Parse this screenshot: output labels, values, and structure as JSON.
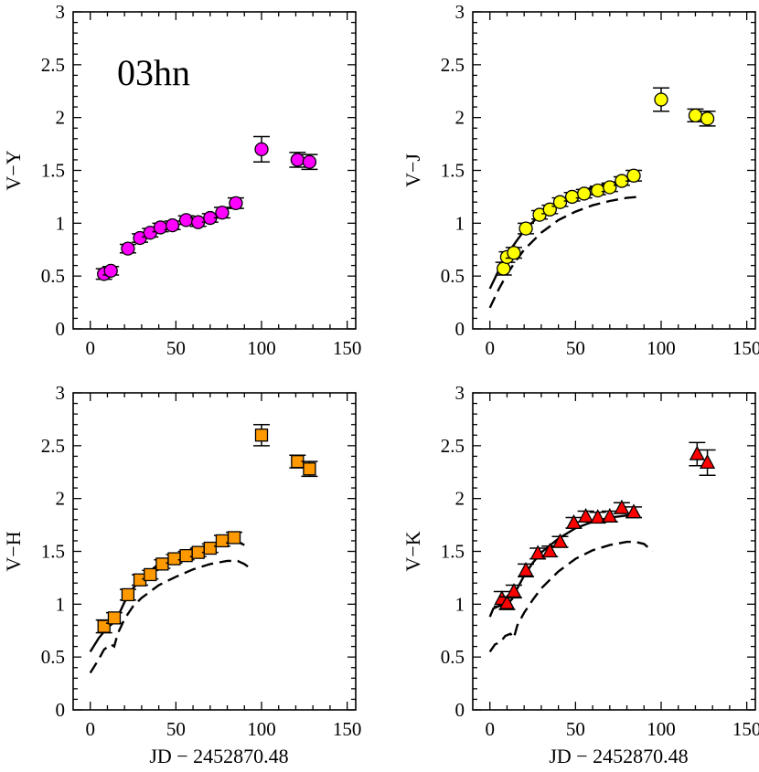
{
  "chart_data": [
    {
      "type": "scatter",
      "ylabel": "V−Y",
      "xlabel": "",
      "annotation": "03hn",
      "xlim": [
        -10,
        155
      ],
      "ylim": [
        0,
        3
      ],
      "xticks": [
        0,
        50,
        100,
        150
      ],
      "yticks": [
        0,
        0.5,
        1,
        1.5,
        2,
        2.5,
        3
      ],
      "ytick_labels": [
        "0",
        "0.5",
        "1",
        "1.5",
        "2",
        "2.5",
        "3"
      ],
      "marker": "circle",
      "marker_color": "#ff00ff",
      "series": [
        {
          "name": "data",
          "x": [
            8,
            12,
            22,
            29,
            35,
            41,
            48,
            56,
            63,
            70,
            77,
            85,
            100,
            121,
            128
          ],
          "y": [
            0.52,
            0.55,
            0.76,
            0.86,
            0.91,
            0.96,
            0.98,
            1.03,
            1.01,
            1.05,
            1.1,
            1.19,
            1.7,
            1.6,
            1.58
          ],
          "err": [
            0.05,
            0.04,
            0.04,
            0.04,
            0.04,
            0.04,
            0.04,
            0.04,
            0.04,
            0.04,
            0.05,
            0.05,
            0.12,
            0.07,
            0.07
          ]
        }
      ],
      "curves": []
    },
    {
      "type": "scatter",
      "ylabel": "V−J",
      "xlabel": "",
      "xlim": [
        -10,
        155
      ],
      "ylim": [
        0,
        3
      ],
      "xticks": [
        0,
        50,
        100,
        150
      ],
      "yticks": [
        0,
        0.5,
        1,
        1.5,
        2,
        2.5,
        3
      ],
      "ytick_labels": [
        "0",
        "0.5",
        "1",
        "1.5",
        "2",
        "2.5",
        "3"
      ],
      "marker": "circle",
      "marker_color": "#ffff00",
      "series": [
        {
          "name": "data",
          "x": [
            8,
            10,
            14,
            21,
            29,
            35,
            41,
            48,
            55,
            63,
            70,
            77,
            84,
            100,
            120,
            127
          ],
          "y": [
            0.57,
            0.68,
            0.72,
            0.95,
            1.08,
            1.13,
            1.2,
            1.25,
            1.28,
            1.31,
            1.34,
            1.4,
            1.45,
            2.17,
            2.02,
            1.99
          ],
          "err": [
            0.06,
            0.05,
            0.05,
            0.05,
            0.04,
            0.04,
            0.04,
            0.04,
            0.04,
            0.04,
            0.04,
            0.04,
            0.05,
            0.11,
            0.06,
            0.07
          ]
        }
      ],
      "curves": [
        {
          "name": "solid-fit",
          "dash": "",
          "x": [
            0,
            5,
            10,
            15,
            20,
            30,
            40,
            50,
            60,
            70,
            80,
            87
          ],
          "y": [
            0.38,
            0.55,
            0.7,
            0.82,
            0.93,
            1.09,
            1.2,
            1.28,
            1.34,
            1.38,
            1.41,
            1.42
          ]
        },
        {
          "name": "dashed-model",
          "dash": "13,7",
          "x": [
            0,
            5,
            10,
            15,
            20,
            30,
            40,
            50,
            60,
            70,
            80,
            87
          ],
          "y": [
            0.2,
            0.37,
            0.52,
            0.64,
            0.75,
            0.91,
            1.03,
            1.11,
            1.17,
            1.21,
            1.24,
            1.25
          ]
        }
      ]
    },
    {
      "type": "scatter",
      "ylabel": "V−H",
      "xlabel": "JD − 2452870.48",
      "xlim": [
        -10,
        155
      ],
      "ylim": [
        0,
        3
      ],
      "xticks": [
        0,
        50,
        100,
        150
      ],
      "yticks": [
        0,
        0.5,
        1,
        1.5,
        2,
        2.5,
        3
      ],
      "ytick_labels": [
        "0",
        "0.5",
        "1",
        "1.5",
        "2",
        "2.5",
        "3"
      ],
      "marker": "square",
      "marker_color": "#ff9900",
      "series": [
        {
          "name": "data",
          "x": [
            8,
            14,
            22,
            29,
            35,
            42,
            49,
            56,
            63,
            70,
            77,
            84,
            100,
            121,
            128
          ],
          "y": [
            0.79,
            0.87,
            1.09,
            1.23,
            1.28,
            1.38,
            1.43,
            1.46,
            1.49,
            1.53,
            1.6,
            1.63,
            2.6,
            2.35,
            2.28
          ],
          "err": [
            0.06,
            0.05,
            0.05,
            0.05,
            0.04,
            0.04,
            0.04,
            0.04,
            0.04,
            0.04,
            0.05,
            0.05,
            0.1,
            0.06,
            0.07
          ]
        }
      ],
      "curves": [
        {
          "name": "solid-fit",
          "dash": "",
          "x": [
            0,
            5,
            10,
            14,
            16,
            20,
            25,
            30,
            40,
            50,
            60,
            70,
            80,
            86,
            90
          ],
          "y": [
            0.55,
            0.68,
            0.78,
            0.83,
            0.88,
            1.02,
            1.15,
            1.25,
            1.38,
            1.46,
            1.52,
            1.56,
            1.59,
            1.59,
            1.56
          ]
        },
        {
          "name": "dashed-model",
          "dash": "13,7",
          "x": [
            0,
            5,
            8,
            12,
            14,
            16,
            20,
            25,
            30,
            40,
            50,
            60,
            70,
            80,
            86,
            90,
            95
          ],
          "y": [
            0.35,
            0.48,
            0.57,
            0.62,
            0.6,
            0.72,
            0.86,
            0.98,
            1.06,
            1.18,
            1.26,
            1.33,
            1.38,
            1.41,
            1.41,
            1.38,
            1.32
          ]
        }
      ]
    },
    {
      "type": "scatter",
      "ylabel": "V−K",
      "xlabel": "JD − 2452870.48",
      "xlim": [
        -10,
        155
      ],
      "ylim": [
        0,
        3
      ],
      "xticks": [
        0,
        50,
        100,
        150
      ],
      "yticks": [
        0,
        0.5,
        1,
        1.5,
        2,
        2.5,
        3
      ],
      "ytick_labels": [
        "0",
        "0.5",
        "1",
        "1.5",
        "2",
        "2.5",
        "3"
      ],
      "marker": "triangle",
      "marker_color": "#ff0000",
      "series": [
        {
          "name": "data",
          "x": [
            7,
            10,
            14,
            21,
            28,
            35,
            41,
            49,
            56,
            63,
            70,
            77,
            84,
            121,
            127
          ],
          "y": [
            1.05,
            1.01,
            1.12,
            1.32,
            1.48,
            1.5,
            1.59,
            1.77,
            1.83,
            1.82,
            1.83,
            1.91,
            1.87,
            2.42,
            2.34
          ],
          "err": [
            0.07,
            0.06,
            0.06,
            0.06,
            0.05,
            0.05,
            0.05,
            0.05,
            0.05,
            0.05,
            0.05,
            0.05,
            0.05,
            0.11,
            0.12
          ]
        }
      ],
      "curves": [
        {
          "name": "solid-fit",
          "dash": "",
          "x": [
            0,
            2,
            5,
            8,
            10,
            13,
            15,
            20,
            25,
            30,
            40,
            50,
            60,
            70,
            80,
            87
          ],
          "y": [
            0.88,
            0.96,
            0.98,
            1.02,
            1.0,
            1.05,
            1.12,
            1.27,
            1.39,
            1.49,
            1.62,
            1.72,
            1.78,
            1.82,
            1.84,
            1.84
          ]
        },
        {
          "name": "dashed-model",
          "dash": "13,7",
          "x": [
            0,
            3,
            6,
            9,
            12,
            14,
            16,
            20,
            25,
            30,
            40,
            50,
            60,
            70,
            80,
            85,
            90,
            95
          ],
          "y": [
            0.55,
            0.62,
            0.64,
            0.7,
            0.72,
            0.68,
            0.8,
            0.92,
            1.04,
            1.15,
            1.31,
            1.43,
            1.51,
            1.56,
            1.59,
            1.59,
            1.57,
            1.5
          ]
        }
      ]
    }
  ]
}
